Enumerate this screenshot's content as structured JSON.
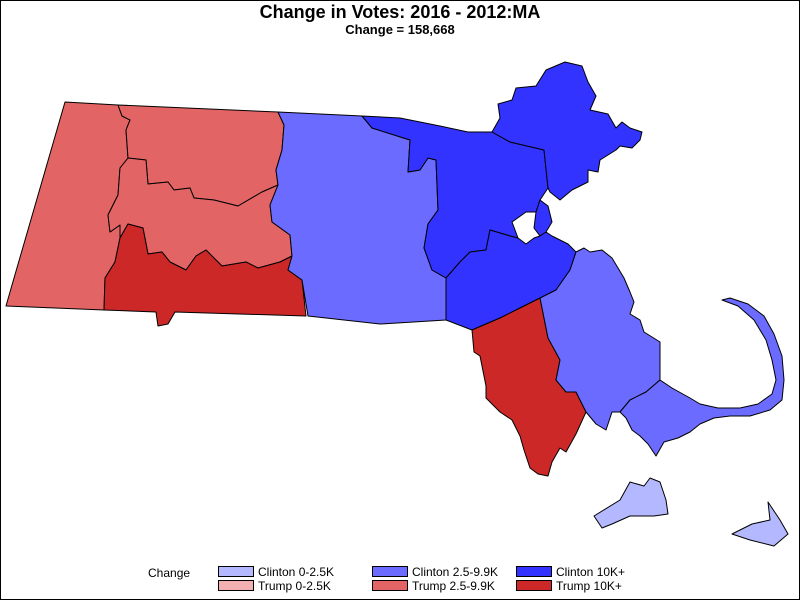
{
  "title": "Change in Votes: 2016 - 2012:MA",
  "subtitle": "Change = 158,668",
  "colors": {
    "clinton_low": "#b3b8ff",
    "clinton_mid": "#6b6bff",
    "clinton_high": "#3333ff",
    "trump_low": "#f3b0b0",
    "trump_mid": "#e36464",
    "trump_high": "#cc2828"
  },
  "regions": [
    {
      "name": "Berkshire",
      "category": "trump_mid"
    },
    {
      "name": "Franklin",
      "category": "trump_mid"
    },
    {
      "name": "Hampshire",
      "category": "trump_mid"
    },
    {
      "name": "Hampden",
      "category": "trump_high"
    },
    {
      "name": "Worcester",
      "category": "clinton_mid"
    },
    {
      "name": "Middlesex",
      "category": "clinton_high"
    },
    {
      "name": "Essex",
      "category": "clinton_high"
    },
    {
      "name": "Suffolk",
      "category": "clinton_high"
    },
    {
      "name": "Norfolk",
      "category": "clinton_high"
    },
    {
      "name": "Bristol",
      "category": "trump_high"
    },
    {
      "name": "Plymouth",
      "category": "clinton_mid"
    },
    {
      "name": "Barnstable",
      "category": "clinton_mid"
    },
    {
      "name": "Dukes",
      "category": "clinton_low"
    },
    {
      "name": "Nantucket",
      "category": "clinton_low"
    }
  ],
  "legend": {
    "title": "Change",
    "items": [
      {
        "label": "Clinton 0-2.5K",
        "color": "#b3b8ff"
      },
      {
        "label": "Clinton 2.5-9.9K",
        "color": "#6b6bff"
      },
      {
        "label": "Clinton 10K+",
        "color": "#3333ff"
      },
      {
        "label": "Trump 0-2.5K",
        "color": "#f3b0b0"
      },
      {
        "label": "Trump 2.5-9.9K",
        "color": "#e36464"
      },
      {
        "label": "Trump 10K+",
        "color": "#cc2828"
      }
    ]
  }
}
